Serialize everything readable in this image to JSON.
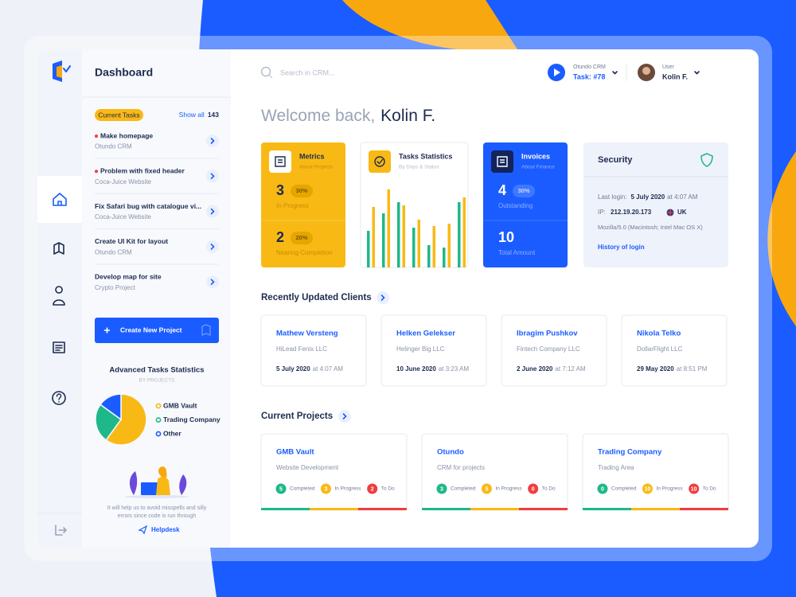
{
  "sidebar": {
    "title": "Dashboard",
    "tasks_badge": "Current Tasks",
    "show_all": "Show all",
    "tasks_count": 143,
    "tasks": [
      {
        "title": "Make homepage",
        "project": "Otundo CRM",
        "urgent": true
      },
      {
        "title": "Problem with fixed header",
        "project": "Coca-Juice Website",
        "urgent": true
      },
      {
        "title": "Fix Safari bug with catalogue vi...",
        "project": "Coca-Juice Website",
        "urgent": false
      },
      {
        "title": "Create UI Kit for layout",
        "project": "Otundo CRM",
        "urgent": false
      },
      {
        "title": "Develop map for site",
        "project": "Crypto Project",
        "urgent": false
      }
    ],
    "create_button": "Create New Project",
    "stats": {
      "type": "pie",
      "title": "Advanced Tasks Statistics",
      "subtitle": "BY PROJECTS",
      "series": [
        {
          "name": "GMB Vault",
          "color": "#f9b915",
          "value": 60
        },
        {
          "name": "Trading Company",
          "color": "#1fb88a",
          "value": 25
        },
        {
          "name": "Other",
          "color": "#1a5cff",
          "value": 15
        }
      ]
    },
    "help_text": [
      "It will help us to avoid misspells and silly",
      "errors since code is run through"
    ],
    "helpdesk": "Helpdesk"
  },
  "header": {
    "search_placeholder": "Search in CRM...",
    "task_app": "Otundo CRM",
    "task": "Task: #78",
    "user_role": "User",
    "user_name": "Kolin F."
  },
  "welcome": {
    "greeting": "Welcome back,",
    "name": "Kolin F."
  },
  "metrics": {
    "title": "Metrics",
    "subtitle": "About Projects",
    "color": "#f9b915",
    "items": [
      {
        "value": 3,
        "badge": "30%",
        "label": "In Progress"
      },
      {
        "value": 2,
        "badge": "20%",
        "label": "Nearing Completion"
      }
    ]
  },
  "task_statistics": {
    "type": "bar",
    "title": "Tasks Statistics",
    "subtitle": "By Days & Status",
    "ylim": [
      0,
      100
    ],
    "series": [
      {
        "color": "#1fb88a",
        "values": [
          46,
          68,
          82,
          50,
          28,
          25,
          82
        ]
      },
      {
        "color": "#f9b915",
        "values": [
          76,
          98,
          78,
          60,
          52,
          55,
          88
        ]
      }
    ]
  },
  "invoices": {
    "title": "Invoices",
    "subtitle": "About Finance",
    "color": "#1a5cff",
    "items": [
      {
        "value": 4,
        "badge": "30%",
        "label": "Outstanding"
      },
      {
        "value": 10,
        "label": "Total Amount"
      }
    ]
  },
  "security": {
    "title": "Security",
    "last_login_label": "Last login:",
    "last_login_date": "5 July 2020",
    "last_login_time": "at 4:07 AM",
    "ip_label": "IP:",
    "ip": "212.19.20.173",
    "country": "UK",
    "agent": "Mozilla/5.0 (Macintosh; Intel Mac OS X)",
    "history_link": "History of login"
  },
  "clients": {
    "title": "Recently Updated Clients",
    "items": [
      {
        "name": "Mathew Versteng",
        "company": "HiLead Fenix LLC",
        "date": "5 July 2020",
        "time": "at 4:07 AM"
      },
      {
        "name": "Helken Gelekser",
        "company": "Helinger Big LLC",
        "date": "10 June 2020",
        "time": "at 3:23 AM"
      },
      {
        "name": "Ibragim Pushkov",
        "company": "Fintech Company LLC",
        "date": "2 June 2020",
        "time": "at 7:12 AM"
      },
      {
        "name": "Nikola Telko",
        "company": "DollarFlight LLC",
        "date": "29 May 2020",
        "time": "at 8:51 PM"
      }
    ]
  },
  "projects": {
    "title": "Current Projects",
    "status_labels": [
      "Completed",
      "In Progress",
      "To Do"
    ],
    "status_colors": [
      "#1fb88a",
      "#f9b915",
      "#ef3e3e"
    ],
    "items": [
      {
        "name": "GMB Vault",
        "description": "Website Development",
        "counts": [
          5,
          3,
          2
        ]
      },
      {
        "name": "Otundo",
        "description": "CRM for projects",
        "counts": [
          3,
          5,
          0
        ]
      },
      {
        "name": "Trading Company",
        "description": "Trading Area",
        "counts": [
          0,
          10,
          10
        ]
      }
    ]
  }
}
